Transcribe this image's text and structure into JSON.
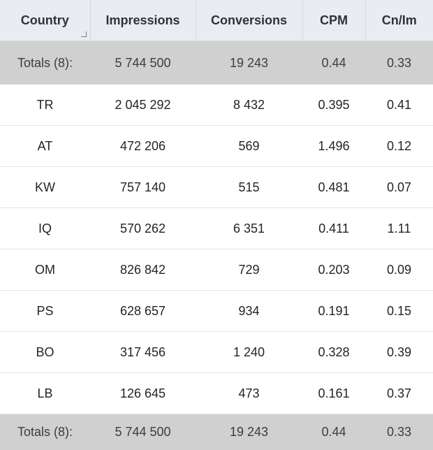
{
  "columns": [
    "Country",
    "Impressions",
    "Conversions",
    "CPM",
    "Cn/Im"
  ],
  "totals": {
    "label": "Totals (8):",
    "impressions": "5 744 500",
    "conversions": "19 243",
    "cpm": "0.44",
    "cnim": "0.33"
  },
  "rows": [
    {
      "country": "TR",
      "impressions": "2 045 292",
      "conversions": "8 432",
      "cpm": "0.395",
      "cnim": "0.41"
    },
    {
      "country": "AT",
      "impressions": "472 206",
      "conversions": "569",
      "cpm": "1.496",
      "cnim": "0.12"
    },
    {
      "country": "KW",
      "impressions": "757 140",
      "conversions": "515",
      "cpm": "0.481",
      "cnim": "0.07"
    },
    {
      "country": "IQ",
      "impressions": "570 262",
      "conversions": "6 351",
      "cpm": "0.411",
      "cnim": "1.11"
    },
    {
      "country": "OM",
      "impressions": "826 842",
      "conversions": "729",
      "cpm": "0.203",
      "cnim": "0.09"
    },
    {
      "country": "PS",
      "impressions": "628 657",
      "conversions": "934",
      "cpm": "0.191",
      "cnim": "0.15"
    },
    {
      "country": "BO",
      "impressions": "317 456",
      "conversions": "1 240",
      "cpm": "0.328",
      "cnim": "0.39"
    },
    {
      "country": "LB",
      "impressions": "126 645",
      "conversions": "473",
      "cpm": "0.161",
      "cnim": "0.37"
    }
  ]
}
